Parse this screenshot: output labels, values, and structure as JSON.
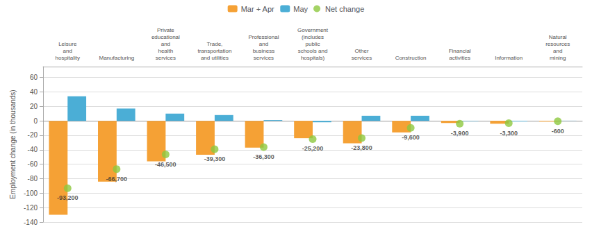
{
  "chart_data": {
    "type": "bar",
    "categories": [
      "Leisure\nand\nhospitality",
      "Manufacturing",
      "Private\neducational\nand\nhealth\nservices",
      "Trade,\ntransportation\nand utilities",
      "Professional\nand\nbusiness\nservices",
      "Government\n(includes\npublic\nschools and\nhospitals)",
      "Other\nservices",
      "Construction",
      "Financial\nactivities",
      "Information",
      "Natural\nresources\nand\nmining"
    ],
    "series": [
      {
        "name": "Mar + Apr",
        "type": "bar",
        "color": "#F5A135",
        "values": [
          -130,
          -84,
          -56,
          -47,
          -37,
          -24,
          -31,
          -16,
          -3,
          -4,
          -1
        ]
      },
      {
        "name": "May",
        "type": "bar",
        "color": "#4BAED6",
        "values": [
          34,
          17,
          10,
          8,
          1,
          -2,
          7,
          7,
          -0.5,
          -0.8,
          0.2
        ]
      },
      {
        "name": "Net change",
        "type": "scatter",
        "color": "#8DC83F",
        "values": [
          -93.2,
          -66.7,
          -46.5,
          -39.3,
          -36.3,
          -25.2,
          -23.8,
          -9.6,
          -3.9,
          -3.3,
          -0.6
        ],
        "value_labels": [
          "-93,200",
          "-66,700",
          "-46,500",
          "-39,300",
          "-36,300",
          "-25,200",
          "-23,800",
          "-9,600",
          "-3,900",
          "-3,300",
          "-600"
        ],
        "data_labels": true
      }
    ],
    "ylabel": "Employment change (in thousands)",
    "ylim": [
      -140,
      75
    ],
    "yticks": [
      -140,
      -120,
      -100,
      -80,
      -60,
      -40,
      -20,
      0,
      20,
      40,
      60
    ],
    "grid": true,
    "legend": "top"
  }
}
